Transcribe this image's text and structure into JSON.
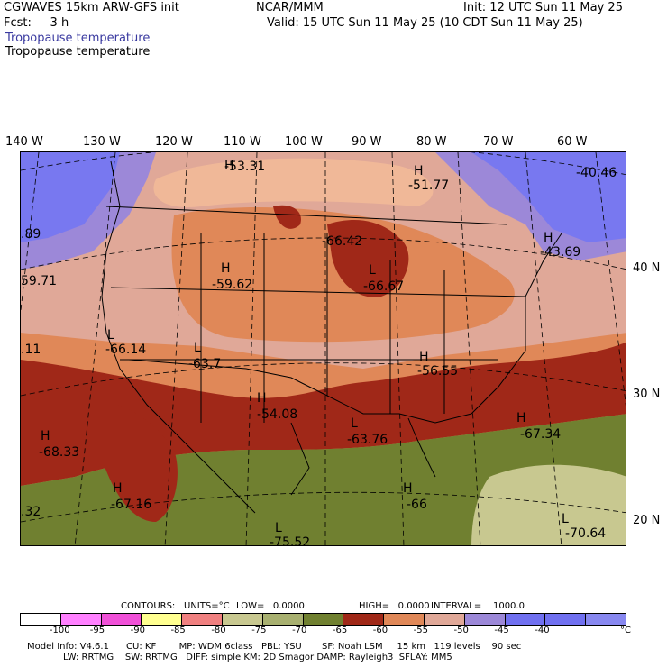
{
  "header": {
    "model": "CGWAVES 15km ARW-GFS init",
    "center": "NCAR/MMM",
    "init": "Init: 12 UTC Sun 11 May 25",
    "fcst": "Fcst:     3 h",
    "valid": "Valid: 15 UTC Sun 11 May 25 (10 CDT Sun 11 May 25)",
    "field1": "Tropopause temperature",
    "field2": "Tropopause temperature"
  },
  "longitudes": [
    "140 W",
    "130 W",
    "120 W",
    "110 W",
    "100 W",
    "90 W",
    "80 W",
    "70 W",
    "60 W"
  ],
  "latitudes": [
    "40 N",
    "30 N",
    "20 N"
  ],
  "map_labels": [
    {
      "mark": "H",
      "value": "-53.31"
    },
    {
      "mark": "H",
      "value": "-51.77"
    },
    {
      "mark": "",
      "value": "-40.46"
    },
    {
      "mark": "",
      "value": ".89"
    },
    {
      "mark": "H",
      "value": "-43.69"
    },
    {
      "mark": "",
      "value": "-66.42"
    },
    {
      "mark": "H",
      "value": "-59.62"
    },
    {
      "mark": "L",
      "value": "-66.67"
    },
    {
      "mark": "",
      "value": "59.71"
    },
    {
      "mark": "L",
      "value": "-66.14"
    },
    {
      "mark": "",
      "value": ".11"
    },
    {
      "mark": "L",
      "value": "-63.7"
    },
    {
      "mark": "H",
      "value": "-56.55"
    },
    {
      "mark": "H",
      "value": "-54.08"
    },
    {
      "mark": "L",
      "value": "-63.76"
    },
    {
      "mark": "H",
      "value": "-68.33"
    },
    {
      "mark": "H",
      "value": "-67.34"
    },
    {
      "mark": "H",
      "value": "-67.16"
    },
    {
      "mark": "H",
      "value": "-66"
    },
    {
      "mark": "",
      "value": ".32"
    },
    {
      "mark": "L",
      "value": "-75.52"
    },
    {
      "mark": "L",
      "value": "-70.64"
    }
  ],
  "contours": {
    "label": "CONTOURS:",
    "units": "UNITS=°C",
    "low": "LOW=   0.0000",
    "high": "HIGH=   0.0000",
    "interval": "INTERVAL=    1000.0"
  },
  "colorbar": {
    "colors": [
      "#ffffff",
      "#ff80ff",
      "#f050d8",
      "#ffff90",
      "#f08080",
      "#c8c890",
      "#a8b070",
      "#708030",
      "#a02818",
      "#e08858",
      "#e0a898",
      "#9c88d8",
      "#7070f0",
      "#7070f0",
      "#8888f0"
    ],
    "ticks": [
      "-100",
      "-95",
      "-90",
      "-85",
      "-80",
      "-75",
      "-70",
      "-65",
      "-60",
      "-55",
      "-50",
      "-45",
      "-40"
    ],
    "unit": "°C"
  },
  "footer": {
    "line1": "Model Info: V4.6.1      CU: KF        MP: WDM 6class   PBL: YSU       SF: Noah LSM     15 km   119 levels    90 sec",
    "line2": "LW: RRTMG    SW: RRTMG   DIFF: simple KM: 2D Smagor DAMP: Rayleigh3  SFLAY: MM5"
  }
}
